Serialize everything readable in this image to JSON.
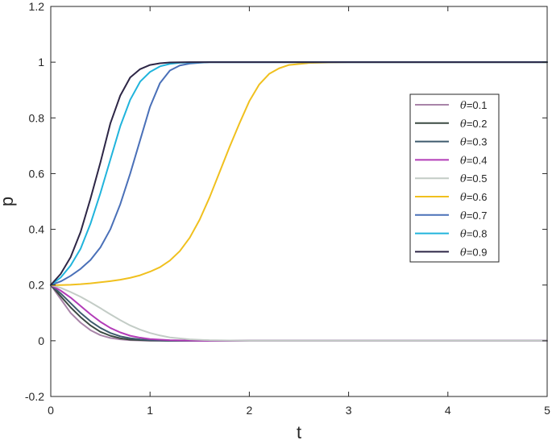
{
  "chart_data": {
    "type": "line",
    "title": "",
    "xlabel": "t",
    "ylabel": "p",
    "xlim": [
      0,
      5
    ],
    "ylim": [
      -0.2,
      1.2
    ],
    "xticks": [
      0,
      1,
      2,
      3,
      4,
      5
    ],
    "xtick_labels": [
      "0",
      "1",
      "2",
      "3",
      "4",
      "5"
    ],
    "yticks": [
      -0.2,
      0,
      0.2,
      0.4,
      0.6,
      0.8,
      1,
      1.2
    ],
    "ytick_labels": [
      "-0.2",
      "0",
      "0.2",
      "0.4",
      "0.6",
      "0.8",
      "1",
      "1.2"
    ],
    "grid": false,
    "legend_position": "right",
    "legend_symbol": "θ",
    "legend_labels": [
      "=0.1",
      "=0.2",
      "=0.3",
      "=0.4",
      "=0.5",
      "=0.6",
      "=0.7",
      "=0.8",
      "=0.9"
    ],
    "series": [
      {
        "color": "#a884a8",
        "x": [
          0,
          0.1,
          0.2,
          0.3,
          0.4,
          0.5,
          0.6,
          0.7,
          0.8,
          1.0,
          1.2,
          1.5,
          2.0,
          5.0
        ],
        "y": [
          0.2,
          0.15,
          0.1,
          0.065,
          0.038,
          0.02,
          0.01,
          0.005,
          0.002,
          0.0,
          0.0,
          0.0,
          0.0,
          0.0
        ]
      },
      {
        "color": "#3b4a42",
        "x": [
          0,
          0.1,
          0.2,
          0.3,
          0.4,
          0.5,
          0.6,
          0.7,
          0.8,
          1.0,
          1.2,
          1.5,
          2.0,
          5.0
        ],
        "y": [
          0.2,
          0.16,
          0.12,
          0.085,
          0.055,
          0.032,
          0.018,
          0.009,
          0.004,
          0.001,
          0.0,
          0.0,
          0.0,
          0.0
        ]
      },
      {
        "color": "#3e5b6e",
        "x": [
          0,
          0.1,
          0.2,
          0.3,
          0.4,
          0.5,
          0.6,
          0.7,
          0.8,
          0.9,
          1.0,
          1.2,
          1.5,
          2.0,
          5.0
        ],
        "y": [
          0.2,
          0.17,
          0.135,
          0.1,
          0.07,
          0.046,
          0.028,
          0.016,
          0.009,
          0.005,
          0.002,
          0.0,
          0.0,
          0.0,
          0.0
        ]
      },
      {
        "color": "#b23cb8",
        "x": [
          0,
          0.1,
          0.2,
          0.3,
          0.4,
          0.5,
          0.6,
          0.7,
          0.8,
          0.9,
          1.0,
          1.2,
          1.5,
          2.0,
          5.0
        ],
        "y": [
          0.2,
          0.18,
          0.155,
          0.125,
          0.095,
          0.068,
          0.046,
          0.03,
          0.018,
          0.011,
          0.006,
          0.002,
          0.0,
          0.0,
          0.0
        ]
      },
      {
        "color": "#c3ccc6",
        "x": [
          0,
          0.1,
          0.2,
          0.3,
          0.4,
          0.5,
          0.6,
          0.7,
          0.8,
          0.9,
          1.0,
          1.1,
          1.2,
          1.4,
          1.6,
          2.0,
          5.0
        ],
        "y": [
          0.2,
          0.19,
          0.175,
          0.158,
          0.138,
          0.117,
          0.095,
          0.074,
          0.055,
          0.04,
          0.028,
          0.019,
          0.012,
          0.005,
          0.002,
          0.0,
          0.0
        ]
      },
      {
        "color": "#f0c01e",
        "x": [
          0,
          0.1,
          0.2,
          0.3,
          0.4,
          0.5,
          0.6,
          0.7,
          0.8,
          0.9,
          1.0,
          1.1,
          1.2,
          1.3,
          1.4,
          1.5,
          1.6,
          1.7,
          1.8,
          1.9,
          2.0,
          2.1,
          2.2,
          2.3,
          2.4,
          2.6,
          2.8,
          3.0,
          5.0
        ],
        "y": [
          0.2,
          0.2,
          0.201,
          0.203,
          0.206,
          0.21,
          0.214,
          0.219,
          0.226,
          0.235,
          0.248,
          0.264,
          0.288,
          0.322,
          0.37,
          0.435,
          0.515,
          0.605,
          0.695,
          0.78,
          0.86,
          0.92,
          0.958,
          0.978,
          0.99,
          0.997,
          0.999,
          1.0,
          1.0
        ]
      },
      {
        "color": "#4a70b8",
        "x": [
          0,
          0.1,
          0.2,
          0.3,
          0.4,
          0.5,
          0.6,
          0.7,
          0.8,
          0.9,
          1.0,
          1.1,
          1.2,
          1.3,
          1.4,
          1.5,
          1.6,
          1.8,
          2.0,
          5.0
        ],
        "y": [
          0.2,
          0.213,
          0.233,
          0.258,
          0.29,
          0.335,
          0.4,
          0.49,
          0.6,
          0.72,
          0.84,
          0.925,
          0.97,
          0.988,
          0.995,
          0.998,
          1.0,
          1.0,
          1.0,
          1.0
        ]
      },
      {
        "color": "#20b4dc",
        "x": [
          0,
          0.1,
          0.2,
          0.3,
          0.4,
          0.5,
          0.6,
          0.7,
          0.8,
          0.9,
          1.0,
          1.1,
          1.2,
          1.3,
          1.4,
          1.6,
          2.0,
          5.0
        ],
        "y": [
          0.2,
          0.227,
          0.27,
          0.33,
          0.42,
          0.53,
          0.65,
          0.77,
          0.865,
          0.93,
          0.965,
          0.985,
          0.994,
          0.998,
          0.999,
          1.0,
          1.0,
          1.0
        ]
      },
      {
        "color": "#2d2646",
        "x": [
          0,
          0.1,
          0.2,
          0.3,
          0.4,
          0.5,
          0.6,
          0.7,
          0.8,
          0.9,
          1.0,
          1.1,
          1.2,
          1.4,
          1.6,
          2.0,
          5.0
        ],
        "y": [
          0.2,
          0.24,
          0.3,
          0.39,
          0.51,
          0.64,
          0.78,
          0.88,
          0.945,
          0.975,
          0.99,
          0.996,
          0.999,
          1.0,
          1.0,
          1.0,
          1.0
        ]
      }
    ]
  }
}
